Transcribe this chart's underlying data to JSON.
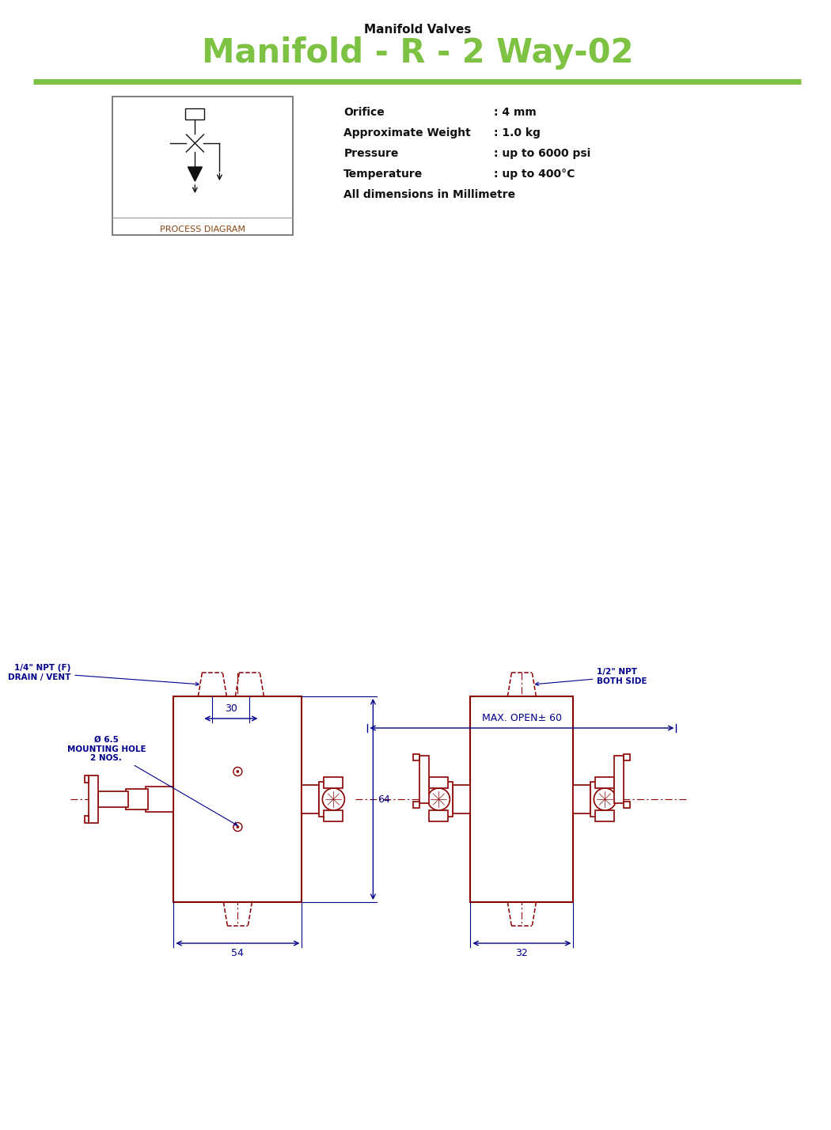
{
  "title_small": "Manifold Valves",
  "title_main": "Manifold - R - 2 Way-02",
  "title_main_color": "#7dc242",
  "separator_color": "#7dc242",
  "bg_color": "#ffffff",
  "specs": [
    [
      "Orifice",
      ": 4 mm"
    ],
    [
      "Approximate Weight",
      ": 1.0 kg"
    ],
    [
      "Pressure",
      ": up to 6000 psi"
    ],
    [
      "Temperature",
      ": up to 400°C"
    ],
    [
      "All dimensions in Millimetre",
      ""
    ]
  ],
  "process_diagram_label": "PROCESS DIAGRAM",
  "diagram_text_color": "#8B4513",
  "drawing_color": "#8B0000",
  "annotation_color": "#00008B",
  "dim_label_30": "30",
  "dim_label_64": "64",
  "dim_label_54": "54",
  "dim_label_32": "32",
  "dim_label_max_open": "MAX. OPEN± 60",
  "label_drain": "1/4\" NPT (F)\nDRAIN / VENT",
  "label_npt": "1/2\" NPT\nBOTH SIDE",
  "label_mounting": "Ø 6.5\nMOUNTING HOLE\n2 NOS."
}
